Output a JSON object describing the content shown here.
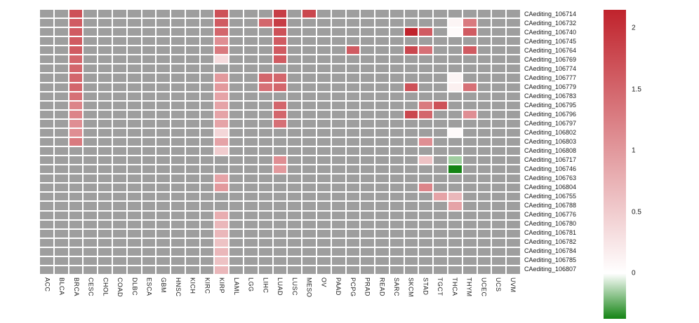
{
  "chart_data": {
    "type": "heatmap",
    "colorbar_position": "right",
    "na_color": "#9e9e9e",
    "grid_line_color": "#ffffff",
    "rows": [
      "CAediting_106714",
      "CAediting_106732",
      "CAediting_106740",
      "CAediting_106745",
      "CAediting_106764",
      "CAediting_106769",
      "CAediting_106774",
      "CAediting_106777",
      "CAediting_106779",
      "CAediting_106783",
      "CAediting_106795",
      "CAediting_106796",
      "CAediting_106797",
      "CAediting_106802",
      "CAediting_106803",
      "CAediting_106808",
      "CAediting_106717",
      "CAediting_106746",
      "CAediting_106763",
      "CAediting_106804",
      "CAediting_106755",
      "CAediting_106788",
      "CAediting_106776",
      "CAediting_106780",
      "CAediting_106781",
      "CAediting_106782",
      "CAediting_106784",
      "CAediting_106785",
      "CAediting_106807"
    ],
    "columns": [
      "ACC",
      "BLCA",
      "BRCA",
      "CESC",
      "CHOL",
      "COAD",
      "DLBC",
      "ESCA",
      "GBM",
      "HNSC",
      "KICH",
      "KIRC",
      "KIRP",
      "LAML",
      "LGG",
      "LIHC",
      "LUAD",
      "LUSC",
      "MESO",
      "OV",
      "PAAD",
      "PCPG",
      "PRAD",
      "READ",
      "SARC",
      "SKCM",
      "STAD",
      "TGCT",
      "THCA",
      "THYM",
      "UCEC",
      "UCS",
      "UVM"
    ],
    "colorbar": {
      "max": 2.15,
      "min": -0.37,
      "max_color": "#c0232c",
      "zero_color": "#ffffff",
      "min_color": "#148414",
      "ticks": [
        {
          "label": "2",
          "value": 2
        },
        {
          "label": "1.5",
          "value": 1.5
        },
        {
          "label": "1",
          "value": 1
        },
        {
          "label": "0.5",
          "value": 0.5
        },
        {
          "label": "0",
          "value": 0
        }
      ]
    },
    "values": [
      {
        "row": "CAediting_106714",
        "col": "BRCA",
        "value": 1.7
      },
      {
        "row": "CAediting_106714",
        "col": "KIRP",
        "value": 1.7
      },
      {
        "row": "CAediting_106714",
        "col": "LUAD",
        "value": 1.9
      },
      {
        "row": "CAediting_106714",
        "col": "MESO",
        "value": 1.8
      },
      {
        "row": "CAediting_106732",
        "col": "BRCA",
        "value": 1.6
      },
      {
        "row": "CAediting_106732",
        "col": "KIRP",
        "value": 1.6
      },
      {
        "row": "CAediting_106732",
        "col": "LIHC",
        "value": 1.5
      },
      {
        "row": "CAediting_106732",
        "col": "LUAD",
        "value": 1.9
      },
      {
        "row": "CAediting_106732",
        "col": "THCA",
        "value": 0.1
      },
      {
        "row": "CAediting_106732",
        "col": "THYM",
        "value": 1.3
      },
      {
        "row": "CAediting_106740",
        "col": "BRCA",
        "value": 1.6
      },
      {
        "row": "CAediting_106740",
        "col": "KIRP",
        "value": 1.5
      },
      {
        "row": "CAediting_106740",
        "col": "LUAD",
        "value": 1.7
      },
      {
        "row": "CAediting_106740",
        "col": "SKCM",
        "value": 2.2
      },
      {
        "row": "CAediting_106740",
        "col": "STAD",
        "value": 1.6
      },
      {
        "row": "CAediting_106740",
        "col": "THCA",
        "value": 0.05
      },
      {
        "row": "CAediting_106740",
        "col": "THYM",
        "value": 1.6
      },
      {
        "row": "CAediting_106745",
        "col": "BRCA",
        "value": 1.6
      },
      {
        "row": "CAediting_106745",
        "col": "KIRP",
        "value": 1.1
      },
      {
        "row": "CAediting_106745",
        "col": "LUAD",
        "value": 1.6
      },
      {
        "row": "CAediting_106764",
        "col": "BRCA",
        "value": 1.6
      },
      {
        "row": "CAediting_106764",
        "col": "KIRP",
        "value": 1.3
      },
      {
        "row": "CAediting_106764",
        "col": "LUAD",
        "value": 1.6
      },
      {
        "row": "CAediting_106764",
        "col": "PCPG",
        "value": 1.6
      },
      {
        "row": "CAediting_106764",
        "col": "SKCM",
        "value": 1.8
      },
      {
        "row": "CAediting_106764",
        "col": "STAD",
        "value": 1.4
      },
      {
        "row": "CAediting_106764",
        "col": "THYM",
        "value": 1.6
      },
      {
        "row": "CAediting_106769",
        "col": "BRCA",
        "value": 1.5
      },
      {
        "row": "CAediting_106769",
        "col": "KIRP",
        "value": 0.35
      },
      {
        "row": "CAediting_106769",
        "col": "LUAD",
        "value": 1.6
      },
      {
        "row": "CAediting_106774",
        "col": "BRCA",
        "value": 1.5
      },
      {
        "row": "CAediting_106777",
        "col": "BRCA",
        "value": 1.5
      },
      {
        "row": "CAediting_106777",
        "col": "KIRP",
        "value": 1.0
      },
      {
        "row": "CAediting_106777",
        "col": "LIHC",
        "value": 1.5
      },
      {
        "row": "CAediting_106777",
        "col": "LUAD",
        "value": 1.5
      },
      {
        "row": "CAediting_106777",
        "col": "THCA",
        "value": 0.1
      },
      {
        "row": "CAediting_106779",
        "col": "BRCA",
        "value": 1.5
      },
      {
        "row": "CAediting_106779",
        "col": "KIRP",
        "value": 1.0
      },
      {
        "row": "CAediting_106779",
        "col": "LIHC",
        "value": 1.4
      },
      {
        "row": "CAediting_106779",
        "col": "LUAD",
        "value": 1.5
      },
      {
        "row": "CAediting_106779",
        "col": "SKCM",
        "value": 1.7
      },
      {
        "row": "CAediting_106779",
        "col": "THCA",
        "value": 0.15
      },
      {
        "row": "CAediting_106779",
        "col": "THYM",
        "value": 1.4
      },
      {
        "row": "CAediting_106783",
        "col": "BRCA",
        "value": 1.4
      },
      {
        "row": "CAediting_106783",
        "col": "KIRP",
        "value": 0.9
      },
      {
        "row": "CAediting_106795",
        "col": "BRCA",
        "value": 1.2
      },
      {
        "row": "CAediting_106795",
        "col": "KIRP",
        "value": 0.9
      },
      {
        "row": "CAediting_106795",
        "col": "LUAD",
        "value": 1.5
      },
      {
        "row": "CAediting_106795",
        "col": "STAD",
        "value": 1.3
      },
      {
        "row": "CAediting_106795",
        "col": "TGCT",
        "value": 1.7
      },
      {
        "row": "CAediting_106796",
        "col": "BRCA",
        "value": 1.2
      },
      {
        "row": "CAediting_106796",
        "col": "KIRP",
        "value": 0.9
      },
      {
        "row": "CAediting_106796",
        "col": "LUAD",
        "value": 1.5
      },
      {
        "row": "CAediting_106796",
        "col": "SKCM",
        "value": 1.8
      },
      {
        "row": "CAediting_106796",
        "col": "STAD",
        "value": 1.5
      },
      {
        "row": "CAediting_106796",
        "col": "THYM",
        "value": 1.1
      },
      {
        "row": "CAediting_106797",
        "col": "BRCA",
        "value": 1.1
      },
      {
        "row": "CAediting_106797",
        "col": "KIRP",
        "value": 0.9
      },
      {
        "row": "CAediting_106797",
        "col": "LUAD",
        "value": 1.4
      },
      {
        "row": "CAediting_106802",
        "col": "BRCA",
        "value": 1.1
      },
      {
        "row": "CAediting_106802",
        "col": "KIRP",
        "value": 0.4
      },
      {
        "row": "CAediting_106802",
        "col": "THCA",
        "value": 0.05
      },
      {
        "row": "CAediting_106803",
        "col": "BRCA",
        "value": 1.3
      },
      {
        "row": "CAediting_106803",
        "col": "KIRP",
        "value": 0.9
      },
      {
        "row": "CAediting_106803",
        "col": "STAD",
        "value": 1.1
      },
      {
        "row": "CAediting_106808",
        "col": "KIRP",
        "value": 0.5
      },
      {
        "row": "CAediting_106717",
        "col": "LUAD",
        "value": 1.1
      },
      {
        "row": "CAediting_106717",
        "col": "STAD",
        "value": 0.6
      },
      {
        "row": "CAediting_106717",
        "col": "THCA",
        "value": -0.15
      },
      {
        "row": "CAediting_106746",
        "col": "LUAD",
        "value": 1.0
      },
      {
        "row": "CAediting_106746",
        "col": "THCA",
        "value": -0.37
      },
      {
        "row": "CAediting_106763",
        "col": "KIRP",
        "value": 0.9
      },
      {
        "row": "CAediting_106804",
        "col": "KIRP",
        "value": 1.0
      },
      {
        "row": "CAediting_106804",
        "col": "STAD",
        "value": 1.2
      },
      {
        "row": "CAediting_106755",
        "col": "TGCT",
        "value": 0.9
      },
      {
        "row": "CAediting_106755",
        "col": "THCA",
        "value": 0.7
      },
      {
        "row": "CAediting_106788",
        "col": "THCA",
        "value": 0.9
      },
      {
        "row": "CAediting_106776",
        "col": "KIRP",
        "value": 0.8
      },
      {
        "row": "CAediting_106780",
        "col": "KIRP",
        "value": 0.7
      },
      {
        "row": "CAediting_106781",
        "col": "KIRP",
        "value": 0.7
      },
      {
        "row": "CAediting_106782",
        "col": "KIRP",
        "value": 0.6
      },
      {
        "row": "CAediting_106784",
        "col": "KIRP",
        "value": 0.7
      },
      {
        "row": "CAediting_106785",
        "col": "KIRP",
        "value": 0.6
      },
      {
        "row": "CAediting_106807",
        "col": "KIRP",
        "value": 0.7
      }
    ]
  }
}
